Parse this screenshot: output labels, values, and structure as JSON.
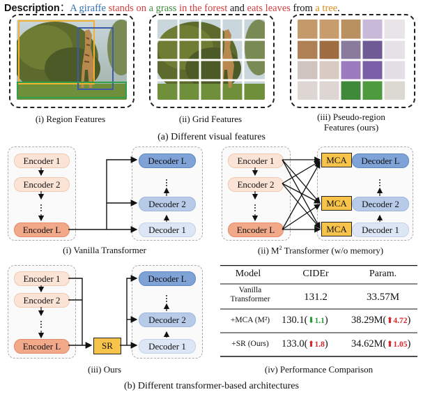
{
  "description": {
    "label": "Description",
    "sep": "：",
    "t1": "A giraffe",
    "t2": " stands on ",
    "t3": "a grass",
    "t4": " in the forest",
    "t5": " and ",
    "t6": "eats leaves",
    "t7": " from ",
    "t8": "a tree",
    "t9": "."
  },
  "features": {
    "region_caption": "(i) Region Features",
    "grid_caption": "(ii) Grid Features",
    "pseudo_caption_1": "(iii) Pseudo-region",
    "pseudo_caption_2": "Features (ours)",
    "section_caption": "(a) Different visual features"
  },
  "vanilla": {
    "enc1": "Encoder 1",
    "enc2": "Encoder 2",
    "encL": "Encoder L",
    "decL": "Decoder L",
    "dec2": "Decoder 2",
    "dec1": "Decoder 1",
    "caption": "(i) Vanilla Transformer"
  },
  "m2": {
    "enc1": "Encoder 1",
    "enc2": "Encoder 2",
    "encL": "Encoder L",
    "mca": "MCA",
    "decL": "Decoder L",
    "dec2": "Decoder 2",
    "dec1": "Decoder 1",
    "caption_pre": "(ii)  M",
    "caption_sup": "2",
    "caption_post": " Transformer (w/o memory)"
  },
  "ours": {
    "enc1": "Encoder 1",
    "enc2": "Encoder 2",
    "encL": "Encoder L",
    "sr": "SR",
    "decL": "Decoder L",
    "dec2": "Decoder 2",
    "dec1": "Decoder 1",
    "caption": "(iii) Ours"
  },
  "performance": {
    "headers": [
      "Model",
      "CIDEr",
      "Param."
    ],
    "rows": [
      {
        "model_line1": "Vanilla",
        "model_line2": "Transformer",
        "cider": "131.2",
        "cider_delta": "",
        "param": "33.57M",
        "param_delta": ""
      },
      {
        "model_line1": "+MCA (M²)",
        "model_line2": "",
        "cider": "130.1(",
        "cider_delta": "1.1",
        "param": "38.29M(",
        "param_delta": "4.72"
      },
      {
        "model_line1": "+SR (Ours)",
        "model_line2": "",
        "cider": "133.0(",
        "cider_delta": "1.8",
        "param": "34.62M(",
        "param_delta": "1.05"
      }
    ],
    "close_paren": ")",
    "caption": "(iv) Performance Comparison"
  },
  "section_b_caption": "(b) Different transformer-based architectures",
  "colors": {
    "encoder_light": "#fbe4d6",
    "encoder_dark": "#f2a98a",
    "decoder_light": "#dde6f4",
    "decoder_dark": "#7fa3d6",
    "module_yellow": "#f7c34a",
    "increase_red": "#d9262b",
    "decrease_green": "#2e9b3b"
  }
}
